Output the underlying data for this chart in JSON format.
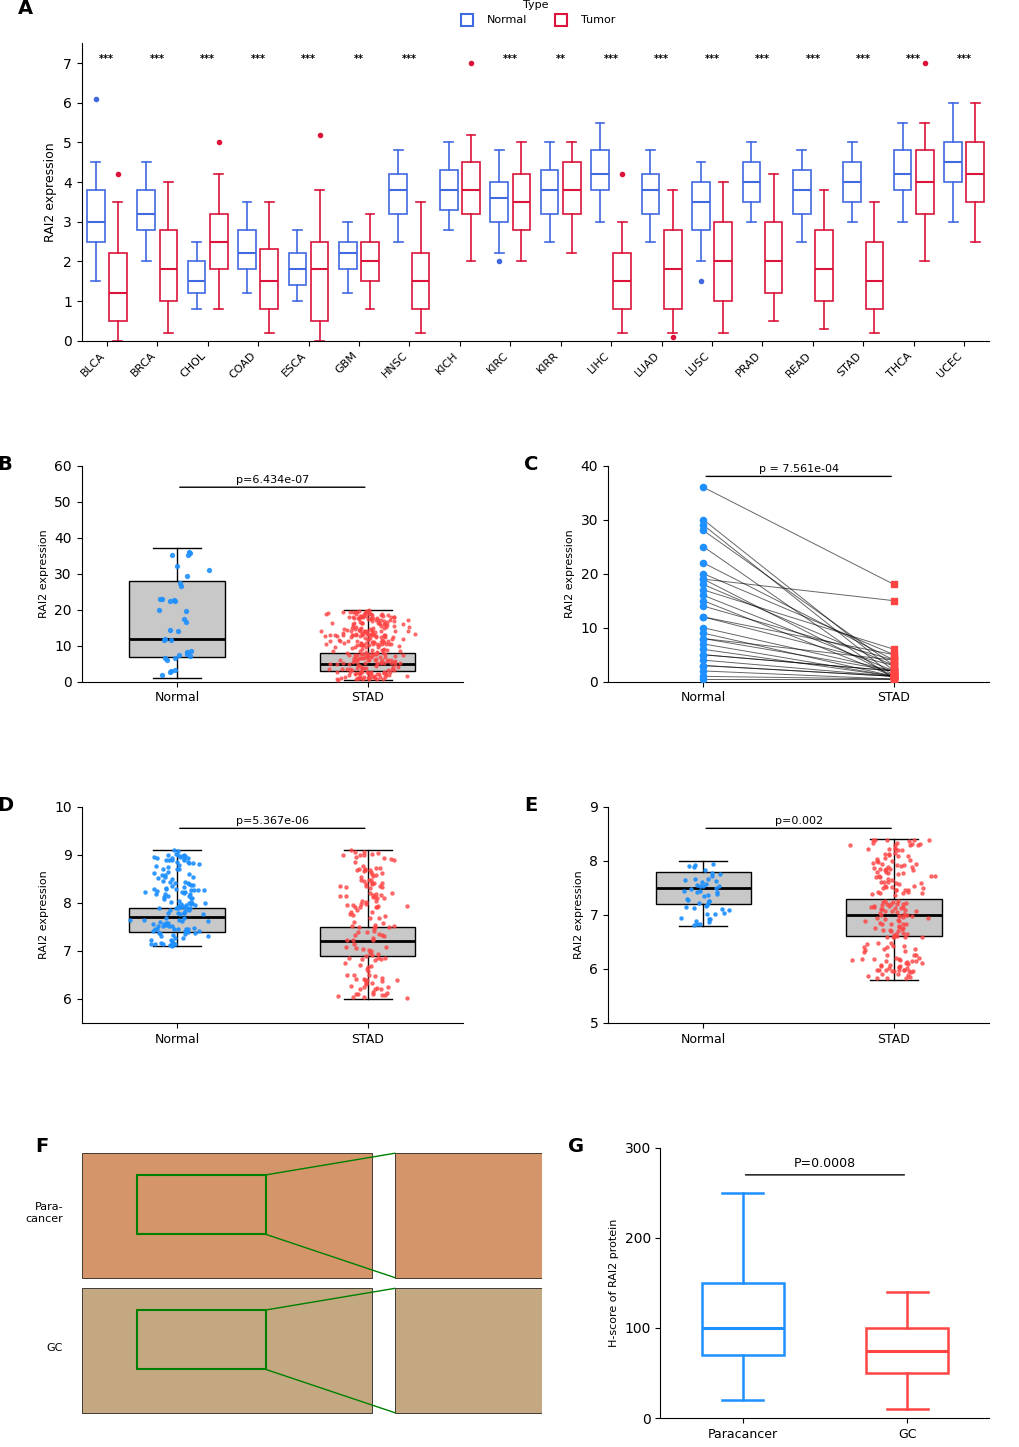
{
  "panel_A": {
    "cancers": [
      "BLCA",
      "BRCA",
      "CHOL",
      "COAD",
      "ESCA",
      "GBM",
      "HNSC",
      "KICH",
      "KIRC",
      "KIRR",
      "LIHC",
      "LUAD",
      "LUSC",
      "PRAD",
      "READ",
      "STAD",
      "THCA",
      "UCEC"
    ],
    "normal_boxes": [
      {
        "med": 3.0,
        "q1": 2.5,
        "q3": 3.8,
        "whislo": 1.5,
        "whishi": 4.5,
        "fliers": [
          6.1
        ]
      },
      {
        "med": 3.2,
        "q1": 2.8,
        "q3": 3.8,
        "whislo": 2.0,
        "whishi": 4.5,
        "fliers": []
      },
      {
        "med": 1.5,
        "q1": 1.2,
        "q3": 2.0,
        "whislo": 0.8,
        "whishi": 2.5,
        "fliers": []
      },
      {
        "med": 2.2,
        "q1": 1.8,
        "q3": 2.8,
        "whislo": 1.2,
        "whishi": 3.5,
        "fliers": []
      },
      {
        "med": 1.8,
        "q1": 1.4,
        "q3": 2.2,
        "whislo": 1.0,
        "whishi": 2.8,
        "fliers": []
      },
      {
        "med": 2.2,
        "q1": 1.8,
        "q3": 2.5,
        "whislo": 1.2,
        "whishi": 3.0,
        "fliers": []
      },
      {
        "med": 3.8,
        "q1": 3.2,
        "q3": 4.2,
        "whislo": 2.5,
        "whishi": 4.8,
        "fliers": []
      },
      {
        "med": 3.8,
        "q1": 3.3,
        "q3": 4.3,
        "whislo": 2.8,
        "whishi": 5.0,
        "fliers": []
      },
      {
        "med": 3.6,
        "q1": 3.0,
        "q3": 4.0,
        "whislo": 2.2,
        "whishi": 4.8,
        "fliers": [
          2.0
        ]
      },
      {
        "med": 3.8,
        "q1": 3.2,
        "q3": 4.3,
        "whislo": 2.5,
        "whishi": 5.0,
        "fliers": []
      },
      {
        "med": 4.2,
        "q1": 3.8,
        "q3": 4.8,
        "whislo": 3.0,
        "whishi": 5.5,
        "fliers": []
      },
      {
        "med": 3.8,
        "q1": 3.2,
        "q3": 4.2,
        "whislo": 2.5,
        "whishi": 4.8,
        "fliers": []
      },
      {
        "med": 3.5,
        "q1": 2.8,
        "q3": 4.0,
        "whislo": 2.0,
        "whishi": 4.5,
        "fliers": [
          1.5
        ]
      },
      {
        "med": 4.0,
        "q1": 3.5,
        "q3": 4.5,
        "whislo": 3.0,
        "whishi": 5.0,
        "fliers": []
      },
      {
        "med": 3.8,
        "q1": 3.2,
        "q3": 4.3,
        "whislo": 2.5,
        "whishi": 4.8,
        "fliers": []
      },
      {
        "med": 4.0,
        "q1": 3.5,
        "q3": 4.5,
        "whislo": 3.0,
        "whishi": 5.0,
        "fliers": []
      },
      {
        "med": 4.2,
        "q1": 3.8,
        "q3": 4.8,
        "whislo": 3.0,
        "whishi": 5.5,
        "fliers": []
      },
      {
        "med": 4.5,
        "q1": 4.0,
        "q3": 5.0,
        "whislo": 3.0,
        "whishi": 6.0,
        "fliers": []
      }
    ],
    "tumor_boxes": [
      {
        "med": 1.2,
        "q1": 0.5,
        "q3": 2.2,
        "whislo": 0.0,
        "whishi": 3.5,
        "fliers": [
          4.2
        ]
      },
      {
        "med": 1.8,
        "q1": 1.0,
        "q3": 2.8,
        "whislo": 0.2,
        "whishi": 4.0,
        "fliers": []
      },
      {
        "med": 2.5,
        "q1": 1.8,
        "q3": 3.2,
        "whislo": 0.8,
        "whishi": 4.2,
        "fliers": [
          5.0
        ]
      },
      {
        "med": 1.5,
        "q1": 0.8,
        "q3": 2.3,
        "whislo": 0.2,
        "whishi": 3.5,
        "fliers": []
      },
      {
        "med": 1.8,
        "q1": 0.5,
        "q3": 2.5,
        "whislo": 0.0,
        "whishi": 3.8,
        "fliers": [
          5.2
        ]
      },
      {
        "med": 2.0,
        "q1": 1.5,
        "q3": 2.5,
        "whislo": 0.8,
        "whishi": 3.2,
        "fliers": []
      },
      {
        "med": 1.5,
        "q1": 0.8,
        "q3": 2.2,
        "whislo": 0.2,
        "whishi": 3.5,
        "fliers": []
      },
      {
        "med": 3.8,
        "q1": 3.2,
        "q3": 4.5,
        "whislo": 2.0,
        "whishi": 5.2,
        "fliers": [
          7.0
        ]
      },
      {
        "med": 3.5,
        "q1": 2.8,
        "q3": 4.2,
        "whislo": 2.0,
        "whishi": 5.0,
        "fliers": []
      },
      {
        "med": 3.8,
        "q1": 3.2,
        "q3": 4.5,
        "whislo": 2.2,
        "whishi": 5.0,
        "fliers": []
      },
      {
        "med": 1.5,
        "q1": 0.8,
        "q3": 2.2,
        "whislo": 0.2,
        "whishi": 3.0,
        "fliers": [
          4.2
        ]
      },
      {
        "med": 1.8,
        "q1": 0.8,
        "q3": 2.8,
        "whislo": 0.2,
        "whishi": 3.8,
        "fliers": [
          0.1
        ]
      },
      {
        "med": 2.0,
        "q1": 1.0,
        "q3": 3.0,
        "whislo": 0.2,
        "whishi": 4.0,
        "fliers": []
      },
      {
        "med": 2.0,
        "q1": 1.2,
        "q3": 3.0,
        "whislo": 0.5,
        "whishi": 4.2,
        "fliers": []
      },
      {
        "med": 1.8,
        "q1": 1.0,
        "q3": 2.8,
        "whislo": 0.3,
        "whishi": 3.8,
        "fliers": []
      },
      {
        "med": 1.5,
        "q1": 0.8,
        "q3": 2.5,
        "whislo": 0.2,
        "whishi": 3.5,
        "fliers": []
      },
      {
        "med": 4.0,
        "q1": 3.2,
        "q3": 4.8,
        "whislo": 2.0,
        "whishi": 5.5,
        "fliers": [
          7.0
        ]
      },
      {
        "med": 4.2,
        "q1": 3.5,
        "q3": 5.0,
        "whislo": 2.5,
        "whishi": 6.0,
        "fliers": []
      }
    ],
    "sig_labels": [
      "***",
      "***",
      "***",
      "***",
      "***",
      "**",
      "***",
      "",
      "***",
      "**",
      "***",
      "***",
      "***",
      "***",
      "***",
      "***",
      "***",
      "***"
    ],
    "ylabel": "RAI2 expression",
    "ylim": [
      0,
      7.5
    ]
  },
  "panel_B": {
    "normal_box": {
      "med": 12.0,
      "q1": 7.0,
      "q3": 28.0,
      "whislo": 1.0,
      "whishi": 37.0
    },
    "stad_box": {
      "med": 5.0,
      "q1": 3.0,
      "q3": 8.0,
      "whislo": 0.5,
      "whishi": 20.0
    },
    "pvalue": "p=6.434e-07",
    "ylabel": "RAI2 expression",
    "xlabels": [
      "Normal",
      "STAD"
    ],
    "ylim": [
      0,
      60
    ]
  },
  "panel_C": {
    "normal_vals": [
      36,
      30,
      29,
      28,
      25,
      22,
      20,
      19,
      18,
      17,
      16,
      15,
      14,
      12,
      10,
      9,
      8,
      7,
      6,
      5,
      4,
      3,
      2,
      1,
      0.5,
      19,
      3,
      5,
      8,
      12
    ],
    "stad_vals": [
      18,
      2,
      1,
      3,
      0.5,
      4,
      5,
      1,
      3,
      6,
      2,
      1,
      4,
      3,
      2,
      1,
      2,
      1,
      1,
      2,
      1,
      1,
      0.5,
      0.5,
      0.5,
      15,
      1,
      2,
      4,
      5
    ],
    "pvalue": "p = 7.561e-04",
    "ylabel": "RAI2 expression",
    "xlabels": [
      "Normal",
      "STAD"
    ],
    "ylim": [
      0,
      40
    ]
  },
  "panel_D": {
    "normal_box": {
      "med": 7.7,
      "q1": 7.4,
      "q3": 7.9,
      "whislo": 7.1,
      "whishi": 9.1
    },
    "stad_box": {
      "med": 7.2,
      "q1": 6.9,
      "q3": 7.5,
      "whislo": 6.0,
      "whishi": 9.1
    },
    "pvalue": "p=5.367e-06",
    "ylabel": "RAI2 expression",
    "xlabels": [
      "Normal",
      "STAD"
    ],
    "ylim": [
      5.5,
      10.0
    ]
  },
  "panel_E": {
    "normal_box": {
      "med": 7.5,
      "q1": 7.2,
      "q3": 7.8,
      "whislo": 6.8,
      "whishi": 8.0
    },
    "stad_box": {
      "med": 7.0,
      "q1": 6.6,
      "q3": 7.3,
      "whislo": 5.8,
      "whishi": 8.4
    },
    "pvalue": "p=0.002",
    "ylabel": "RAI2 expression",
    "xlabels": [
      "Normal",
      "STAD"
    ],
    "ylim": [
      5,
      9
    ]
  },
  "panel_G": {
    "paracancer_box": {
      "med": 100,
      "q1": 70,
      "q3": 150,
      "whislo": 20,
      "whishi": 250
    },
    "gc_box": {
      "med": 75,
      "q1": 50,
      "q3": 100,
      "whislo": 10,
      "whishi": 140
    },
    "pvalue": "P=0.0008",
    "ylabel": "H-score of RAI2 protein",
    "xlabels": [
      "Paracancer",
      "GC"
    ],
    "ylim": [
      0,
      300
    ]
  },
  "colors": {
    "normal": "#4169E1",
    "tumor": "#DC143C",
    "blue": "#1E90FF",
    "red": "#FF4444"
  }
}
